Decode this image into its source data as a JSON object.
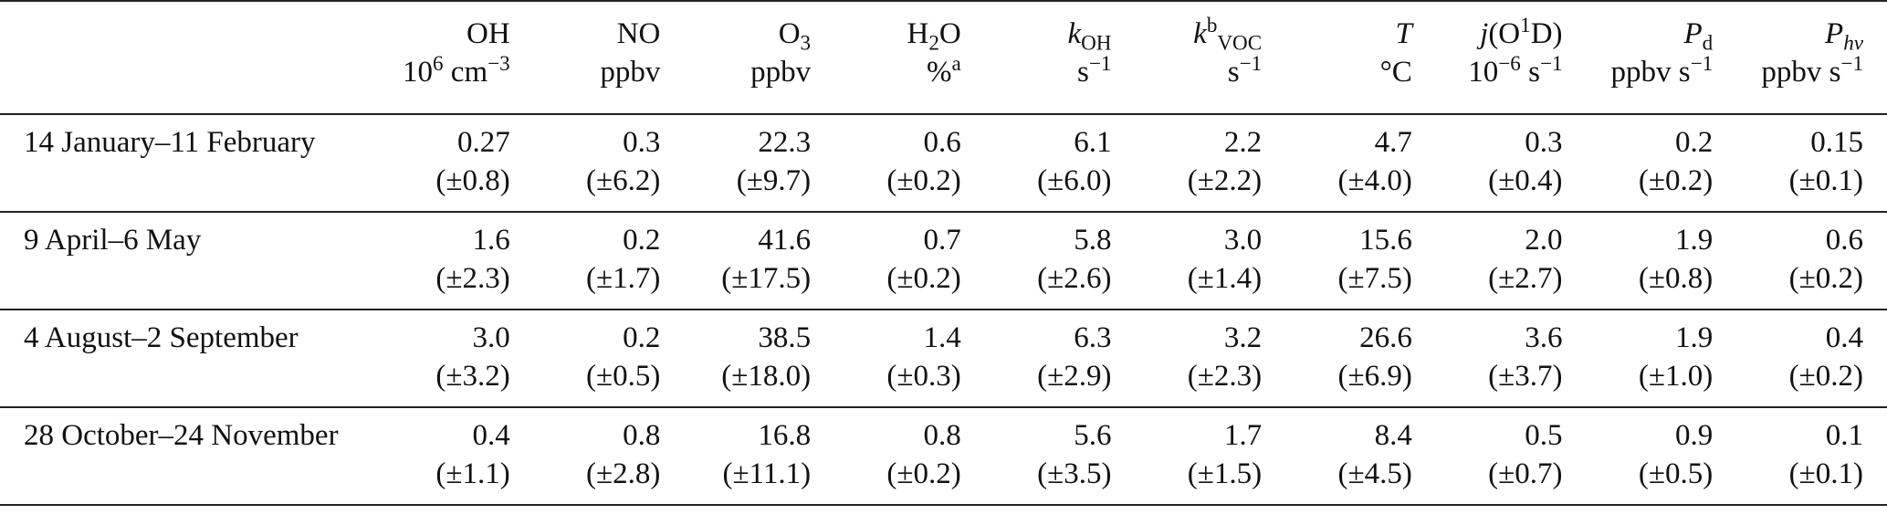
{
  "columns": [
    {
      "symbol": "OH",
      "unit_prefix": "10",
      "unit_prefix_sup": "6",
      "unit_base": " cm",
      "unit_sup": "−3"
    },
    {
      "symbol": "NO",
      "unit": "ppbv"
    },
    {
      "symbol": "O",
      "symbol_sub": "3",
      "unit": "ppbv"
    },
    {
      "symbol": "H",
      "symbol_sub": "2",
      "symbol_tail": "O",
      "unit": "%",
      "unit_sup": "a"
    },
    {
      "symbol": "k",
      "symbol_sub": "OH",
      "unit": "s",
      "unit_sup": "−1"
    },
    {
      "symbol": "k",
      "symbol_sup": "b",
      "symbol_sub": "VOC",
      "unit": "s",
      "unit_sup": "−1"
    },
    {
      "symbol": "T",
      "unit": "°C"
    },
    {
      "symbol": "j",
      "symbol_tail": "(O",
      "symbol_tail_sup": "1",
      "symbol_tail_end": "D)",
      "unit_prefix": "10",
      "unit_prefix_sup": "−6",
      "unit_base": " s",
      "unit_sup": "−1"
    },
    {
      "symbol": "P",
      "symbol_sub": "d",
      "unit": "ppbv s",
      "unit_sup": "−1"
    },
    {
      "symbol": "P",
      "symbol_sub": "hv",
      "unit": "ppbv s",
      "unit_sup": "−1"
    }
  ],
  "rows": [
    {
      "label": "14 January–11 February",
      "values": [
        "0.27",
        "0.3",
        "22.3",
        "0.6",
        "6.1",
        "2.2",
        "4.7",
        "0.3",
        "0.2",
        "0.15"
      ],
      "uncertainties": [
        "(±0.8)",
        "(±6.2)",
        "(±9.7)",
        "(±0.2)",
        "(±6.0)",
        "(±2.2)",
        "(±4.0)",
        "(±0.4)",
        "(±0.2)",
        "(±0.1)"
      ]
    },
    {
      "label": "9 April–6 May",
      "values": [
        "1.6",
        "0.2",
        "41.6",
        "0.7",
        "5.8",
        "3.0",
        "15.6",
        "2.0",
        "1.9",
        "0.6"
      ],
      "uncertainties": [
        "(±2.3)",
        "(±1.7)",
        "(±17.5)",
        "(±0.2)",
        "(±2.6)",
        "(±1.4)",
        "(±7.5)",
        "(±2.7)",
        "(±0.8)",
        "(±0.2)"
      ]
    },
    {
      "label": "4 August–2 September",
      "values": [
        "3.0",
        "0.2",
        "38.5",
        "1.4",
        "6.3",
        "3.2",
        "26.6",
        "3.6",
        "1.9",
        "0.4"
      ],
      "uncertainties": [
        "(±3.2)",
        "(±0.5)",
        "(±18.0)",
        "(±0.3)",
        "(±2.9)",
        "(±2.3)",
        "(±6.9)",
        "(±3.7)",
        "(±1.0)",
        "(±0.2)"
      ]
    },
    {
      "label": "28 October–24 November",
      "values": [
        "0.4",
        "0.8",
        "16.8",
        "0.8",
        "5.6",
        "1.7",
        "8.4",
        "0.5",
        "0.9",
        "0.1"
      ],
      "uncertainties": [
        "(±1.1)",
        "(±2.8)",
        "(±11.1)",
        "(±0.2)",
        "(±3.5)",
        "(±1.5)",
        "(±4.5)",
        "(±0.7)",
        "(±0.5)",
        "(±0.1)"
      ]
    }
  ]
}
